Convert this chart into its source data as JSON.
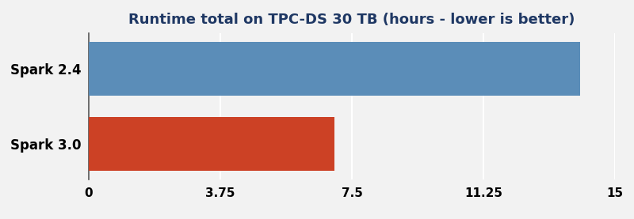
{
  "title": "Runtime total on TPC-DS 30 TB (hours - lower is better)",
  "categories": [
    "Spark 2.4",
    "Spark 3.0"
  ],
  "values": [
    14.0,
    7.0
  ],
  "bar_colors": [
    "#5b8db8",
    "#cc4125"
  ],
  "xlim": [
    0,
    15
  ],
  "xticks": [
    0,
    3.75,
    7.5,
    11.25,
    15
  ],
  "xtick_labels": [
    "0",
    "3.75",
    "7.5",
    "11.25",
    "15"
  ],
  "title_color": "#1f3864",
  "title_fontsize": 13,
  "label_fontsize": 12,
  "tick_fontsize": 11,
  "background_color": "#f2f2f2",
  "grid_color": "#ffffff",
  "bar_height": 0.72
}
